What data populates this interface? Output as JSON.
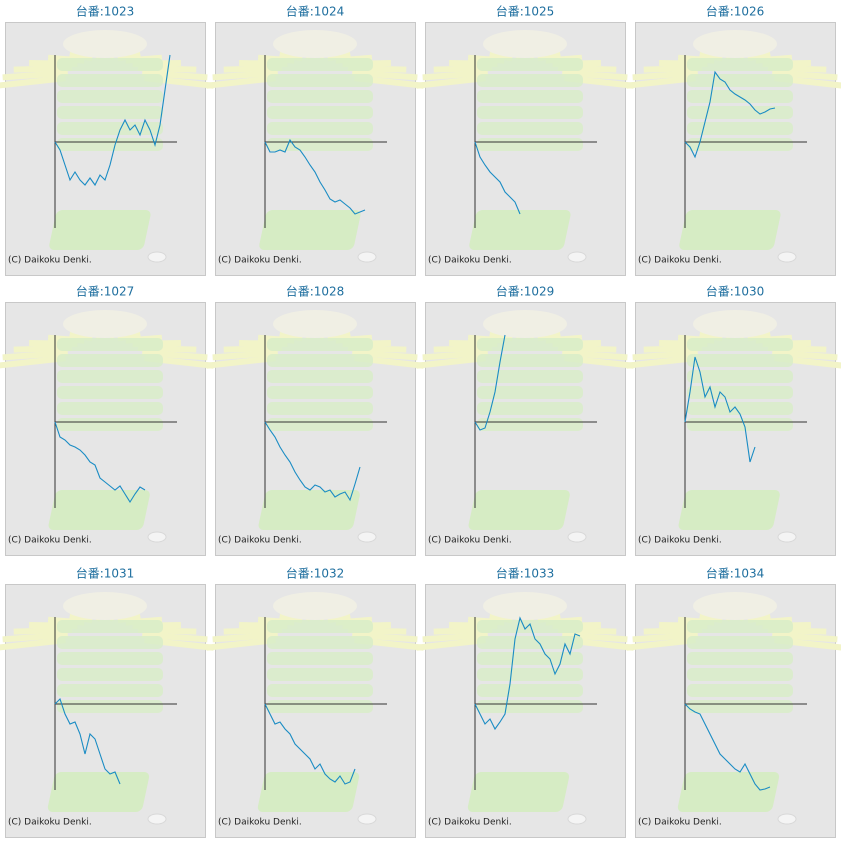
{
  "chart_data": [
    {
      "type": "line",
      "title": "台番:1023",
      "annotation": "(C) Daikoku Denki.",
      "color": "#1a8cc4",
      "xlim": [
        0,
        120
      ],
      "ylim": [
        -860,
        870
      ],
      "x": [
        0,
        5,
        10,
        15,
        20,
        25,
        30,
        35,
        40,
        45,
        50,
        55,
        60,
        65,
        70,
        75,
        80,
        85,
        90,
        95,
        100,
        105,
        110,
        115
      ],
      "values": [
        0,
        -80,
        -230,
        -380,
        -300,
        -380,
        -430,
        -360,
        -430,
        -330,
        -380,
        -230,
        -30,
        120,
        220,
        120,
        170,
        70,
        220,
        120,
        -30,
        170,
        520,
        870
      ]
    },
    {
      "type": "line",
      "title": "台番:1024",
      "annotation": "(C) Daikoku Denki.",
      "color": "#1a8cc4",
      "xlim": [
        0,
        120
      ],
      "ylim": [
        -860,
        870
      ],
      "x": [
        0,
        5,
        10,
        15,
        20,
        25,
        30,
        35,
        40,
        45,
        50,
        55,
        60,
        65,
        70,
        75,
        80,
        85,
        90,
        95,
        100
      ],
      "values": [
        0,
        -100,
        -100,
        -80,
        -100,
        20,
        -50,
        -80,
        -150,
        -230,
        -300,
        -400,
        -480,
        -570,
        -600,
        -580,
        -620,
        -660,
        -720,
        -700,
        -680
      ]
    },
    {
      "type": "line",
      "title": "台番:1025",
      "annotation": "(C) Daikoku Denki.",
      "color": "#1a8cc4",
      "xlim": [
        0,
        120
      ],
      "ylim": [
        -860,
        870
      ],
      "x": [
        0,
        5,
        10,
        15,
        20,
        25,
        30,
        35,
        40,
        45
      ],
      "values": [
        0,
        -150,
        -230,
        -300,
        -350,
        -400,
        -500,
        -550,
        -600,
        -720
      ]
    },
    {
      "type": "line",
      "title": "台番:1026",
      "annotation": "(C) Daikoku Denki.",
      "color": "#1a8cc4",
      "xlim": [
        0,
        120
      ],
      "ylim": [
        -860,
        870
      ],
      "x": [
        0,
        5,
        10,
        15,
        20,
        25,
        30,
        35,
        40,
        45,
        50,
        55,
        60,
        65,
        70,
        75,
        80,
        85,
        90
      ],
      "values": [
        0,
        -50,
        -150,
        0,
        200,
        400,
        700,
        630,
        600,
        520,
        480,
        450,
        420,
        380,
        320,
        280,
        300,
        330,
        340
      ]
    },
    {
      "type": "line",
      "title": "台番:1027",
      "annotation": "(C) Daikoku Denki.",
      "color": "#1a8cc4",
      "xlim": [
        0,
        120
      ],
      "ylim": [
        -860,
        870
      ],
      "x": [
        0,
        5,
        10,
        15,
        20,
        25,
        30,
        35,
        40,
        45,
        50,
        55,
        60,
        65,
        70,
        75,
        80,
        85,
        90
      ],
      "values": [
        0,
        -150,
        -180,
        -230,
        -250,
        -280,
        -330,
        -400,
        -430,
        -560,
        -600,
        -640,
        -680,
        -640,
        -720,
        -800,
        -720,
        -650,
        -680
      ]
    },
    {
      "type": "line",
      "title": "台番:1028",
      "annotation": "(C) Daikoku Denki.",
      "color": "#1a8cc4",
      "xlim": [
        0,
        120
      ],
      "ylim": [
        -860,
        870
      ],
      "x": [
        0,
        5,
        10,
        15,
        20,
        25,
        30,
        35,
        40,
        45,
        50,
        55,
        60,
        65,
        70,
        75,
        80,
        85,
        90,
        95
      ],
      "values": [
        0,
        -80,
        -150,
        -250,
        -330,
        -400,
        -500,
        -580,
        -650,
        -680,
        -630,
        -650,
        -700,
        -680,
        -750,
        -720,
        -700,
        -780,
        -620,
        -450
      ]
    },
    {
      "type": "line",
      "title": "台番:1029",
      "annotation": "(C) Daikoku Denki.",
      "color": "#1a8cc4",
      "xlim": [
        0,
        120
      ],
      "ylim": [
        -860,
        870
      ],
      "x": [
        0,
        5,
        10,
        15,
        20,
        25,
        30
      ],
      "values": [
        0,
        -80,
        -60,
        100,
        300,
        600,
        870
      ]
    },
    {
      "type": "line",
      "title": "台番:1030",
      "annotation": "(C) Daikoku Denki.",
      "color": "#1a8cc4",
      "xlim": [
        0,
        120
      ],
      "ylim": [
        -860,
        870
      ],
      "x": [
        0,
        5,
        10,
        15,
        20,
        25,
        30,
        35,
        40,
        45,
        50,
        55,
        60,
        65,
        70
      ],
      "values": [
        0,
        300,
        650,
        500,
        250,
        350,
        150,
        300,
        250,
        100,
        150,
        80,
        -50,
        -400,
        -250
      ]
    },
    {
      "type": "line",
      "title": "台番:1031",
      "annotation": "(C) Daikoku Denki.",
      "color": "#1a8cc4",
      "xlim": [
        0,
        120
      ],
      "ylim": [
        -860,
        870
      ],
      "x": [
        0,
        5,
        10,
        15,
        20,
        25,
        30,
        35,
        40,
        45,
        50,
        55,
        60,
        65
      ],
      "values": [
        0,
        50,
        -100,
        -200,
        -180,
        -300,
        -500,
        -300,
        -350,
        -500,
        -650,
        -700,
        -680,
        -800
      ]
    },
    {
      "type": "line",
      "title": "台番:1032",
      "annotation": "(C) Daikoku Denki.",
      "color": "#1a8cc4",
      "xlim": [
        0,
        120
      ],
      "ylim": [
        -860,
        870
      ],
      "x": [
        0,
        5,
        10,
        15,
        20,
        25,
        30,
        35,
        40,
        45,
        50,
        55,
        60,
        65,
        70,
        75,
        80,
        85,
        90
      ],
      "values": [
        0,
        -100,
        -200,
        -180,
        -250,
        -300,
        -400,
        -450,
        -500,
        -550,
        -650,
        -600,
        -700,
        -750,
        -780,
        -720,
        -800,
        -780,
        -650
      ]
    },
    {
      "type": "line",
      "title": "台番:1033",
      "annotation": "(C) Daikoku Denki.",
      "color": "#1a8cc4",
      "xlim": [
        0,
        120
      ],
      "ylim": [
        -860,
        870
      ],
      "x": [
        0,
        5,
        10,
        15,
        20,
        25,
        30,
        35,
        40,
        45,
        50,
        55,
        60,
        65,
        70,
        75,
        80,
        85,
        90,
        95,
        100,
        105
      ],
      "values": [
        0,
        -100,
        -200,
        -150,
        -250,
        -180,
        -100,
        200,
        650,
        860,
        750,
        800,
        650,
        600,
        500,
        450,
        300,
        400,
        600,
        500,
        700,
        680
      ]
    },
    {
      "type": "line",
      "title": "台番:1034",
      "annotation": "(C) Daikoku Denki.",
      "color": "#1a8cc4",
      "xlim": [
        0,
        120
      ],
      "ylim": [
        -860,
        870
      ],
      "x": [
        0,
        5,
        10,
        15,
        20,
        25,
        30,
        35,
        40,
        45,
        50,
        55,
        60,
        65,
        70,
        75,
        80,
        85
      ],
      "values": [
        0,
        -50,
        -80,
        -100,
        -200,
        -300,
        -400,
        -500,
        -550,
        -600,
        -650,
        -680,
        -600,
        -700,
        -800,
        -860,
        -850,
        -830
      ]
    }
  ]
}
